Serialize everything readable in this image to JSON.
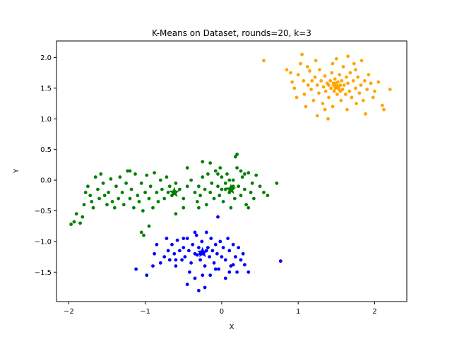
{
  "chart_data": {
    "type": "scatter",
    "title": "K-Means on Dataset, rounds=20, k=3",
    "xlabel": "X",
    "ylabel": "Y",
    "xlim": [
      -2.16,
      2.42
    ],
    "ylim": [
      -1.98,
      2.27
    ],
    "xticks": [
      -2,
      -1,
      0,
      1,
      2
    ],
    "yticks": [
      -1.5,
      -1.0,
      -0.5,
      0.0,
      0.5,
      1.0,
      1.5,
      2.0
    ],
    "xtick_labels": [
      "−2",
      "−1",
      "0",
      "1",
      "2"
    ],
    "ytick_labels": [
      "−1.5",
      "−1.0",
      "−0.5",
      "0.0",
      "0.5",
      "1.0",
      "1.5",
      "2.0"
    ],
    "grid": false,
    "legend": "none",
    "series": [
      {
        "color": "#ffa500",
        "centroid": [
          1.5,
          1.52
        ],
        "points": [
          [
            0.55,
            1.95
          ],
          [
            0.85,
            1.8
          ],
          [
            0.9,
            1.75
          ],
          [
            0.92,
            1.6
          ],
          [
            0.95,
            1.5
          ],
          [
            0.98,
            1.35
          ],
          [
            1.0,
            1.72
          ],
          [
            1.03,
            1.9
          ],
          [
            1.05,
            2.05
          ],
          [
            1.07,
            1.62
          ],
          [
            1.08,
            1.4
          ],
          [
            1.1,
            1.2
          ],
          [
            1.12,
            1.85
          ],
          [
            1.13,
            1.55
          ],
          [
            1.15,
            1.78
          ],
          [
            1.17,
            1.48
          ],
          [
            1.2,
            1.3
          ],
          [
            1.22,
            1.68
          ],
          [
            1.23,
            1.95
          ],
          [
            1.25,
            1.55
          ],
          [
            1.27,
            1.42
          ],
          [
            1.28,
            1.8
          ],
          [
            1.3,
            1.62
          ],
          [
            1.32,
            1.25
          ],
          [
            1.33,
            1.52
          ],
          [
            1.35,
            1.7
          ],
          [
            1.36,
            1.45
          ],
          [
            1.38,
            1.58
          ],
          [
            1.39,
            1.0
          ],
          [
            1.4,
            1.35
          ],
          [
            1.42,
            1.62
          ],
          [
            1.43,
            1.5
          ],
          [
            1.44,
            1.75
          ],
          [
            1.45,
            1.2
          ],
          [
            1.46,
            1.58
          ],
          [
            1.47,
            1.45
          ],
          [
            1.48,
            1.65
          ],
          [
            1.49,
            1.52
          ],
          [
            1.5,
            1.98
          ],
          [
            1.51,
            1.4
          ],
          [
            1.52,
            1.6
          ],
          [
            1.53,
            1.5
          ],
          [
            1.54,
            1.72
          ],
          [
            1.55,
            1.55
          ],
          [
            1.56,
            1.3
          ],
          [
            1.57,
            1.62
          ],
          [
            1.58,
            1.48
          ],
          [
            1.59,
            1.85
          ],
          [
            1.6,
            1.55
          ],
          [
            1.62,
            1.4
          ],
          [
            1.63,
            1.68
          ],
          [
            1.64,
            1.15
          ],
          [
            1.65,
            1.58
          ],
          [
            1.67,
            1.45
          ],
          [
            1.68,
            1.75
          ],
          [
            1.7,
            1.35
          ],
          [
            1.72,
            1.62
          ],
          [
            1.73,
            1.9
          ],
          [
            1.75,
            1.5
          ],
          [
            1.76,
            1.25
          ],
          [
            1.78,
            1.68
          ],
          [
            1.8,
            1.42
          ],
          [
            1.82,
            1.55
          ],
          [
            1.83,
            1.95
          ],
          [
            1.85,
            1.3
          ],
          [
            1.87,
            1.62
          ],
          [
            1.88,
            1.08
          ],
          [
            1.9,
            1.48
          ],
          [
            1.92,
            1.72
          ],
          [
            1.95,
            1.58
          ],
          [
            1.98,
            1.35
          ],
          [
            2.0,
            1.45
          ],
          [
            2.05,
            1.6
          ],
          [
            2.1,
            1.22
          ],
          [
            2.12,
            1.15
          ],
          [
            2.2,
            1.48
          ],
          [
            1.25,
            1.05
          ],
          [
            1.35,
            1.15
          ],
          [
            1.45,
            1.9
          ],
          [
            1.18,
            1.62
          ],
          [
            1.65,
            2.02
          ],
          [
            1.75,
            1.8
          ],
          [
            1.4,
            1.55
          ],
          [
            1.55,
            1.45
          ],
          [
            1.48,
            1.58
          ],
          [
            1.52,
            1.53
          ]
        ]
      },
      {
        "color": "#008000",
        "centroid": [
          -0.62,
          -0.2
        ],
        "centroid2": [
          0.12,
          -0.15
        ],
        "points": [
          [
            -1.97,
            -0.72
          ],
          [
            -1.93,
            -0.68
          ],
          [
            -1.9,
            -0.55
          ],
          [
            -1.85,
            -0.7
          ],
          [
            -1.82,
            -0.6
          ],
          [
            -1.8,
            -0.4
          ],
          [
            -1.78,
            -0.2
          ],
          [
            -1.75,
            -0.1
          ],
          [
            -1.72,
            -0.25
          ],
          [
            -1.7,
            -0.35
          ],
          [
            -1.68,
            -0.45
          ],
          [
            -1.65,
            0.05
          ],
          [
            -1.62,
            -0.15
          ],
          [
            -1.6,
            -0.3
          ],
          [
            -1.58,
            0.1
          ],
          [
            -1.55,
            -0.05
          ],
          [
            -1.53,
            -0.25
          ],
          [
            -1.5,
            -0.4
          ],
          [
            -1.48,
            -0.2
          ],
          [
            -1.45,
            0.02
          ],
          [
            -1.43,
            -0.35
          ],
          [
            -1.4,
            -0.45
          ],
          [
            -1.38,
            -0.1
          ],
          [
            -1.35,
            -0.3
          ],
          [
            -1.33,
            0.05
          ],
          [
            -1.3,
            -0.2
          ],
          [
            -1.28,
            -0.4
          ],
          [
            -1.25,
            -0.05
          ],
          [
            -1.23,
            0.15
          ],
          [
            -1.2,
            -0.3
          ],
          [
            -1.18,
            -0.15
          ],
          [
            -1.15,
            -0.45
          ],
          [
            -1.13,
            0.1
          ],
          [
            -1.1,
            -0.25
          ],
          [
            -1.08,
            -0.35
          ],
          [
            -1.05,
            -0.05
          ],
          [
            -1.03,
            -0.5
          ],
          [
            -1.0,
            -0.2
          ],
          [
            -0.98,
            0.08
          ],
          [
            -0.95,
            -0.3
          ],
          [
            -0.93,
            -0.1
          ],
          [
            -0.9,
            -0.45
          ],
          [
            -0.88,
            0.12
          ],
          [
            -0.85,
            -0.2
          ],
          [
            -0.83,
            -0.35
          ],
          [
            -0.8,
            0.0
          ],
          [
            -0.78,
            -0.15
          ],
          [
            -0.75,
            -0.3
          ],
          [
            -0.72,
            0.05
          ],
          [
            -0.7,
            -0.2
          ],
          [
            -0.68,
            -0.1
          ],
          [
            -0.65,
            -0.25
          ],
          [
            -0.6,
            -0.05
          ],
          [
            -0.55,
            -0.15
          ],
          [
            -0.5,
            -0.3
          ],
          [
            -0.45,
            -0.1
          ],
          [
            -0.4,
            0.0
          ],
          [
            -0.35,
            -0.2
          ],
          [
            -0.32,
            -0.35
          ],
          [
            -0.3,
            -0.1
          ],
          [
            -0.28,
            -0.25
          ],
          [
            -0.25,
            0.05
          ],
          [
            -0.22,
            -0.15
          ],
          [
            -0.2,
            -0.4
          ],
          [
            -0.18,
            0.1
          ],
          [
            -0.15,
            -0.2
          ],
          [
            -0.13,
            -0.05
          ],
          [
            -0.1,
            -0.3
          ],
          [
            -0.08,
            0.15
          ],
          [
            -0.05,
            -0.1
          ],
          [
            -0.03,
            -0.25
          ],
          [
            0.0,
            0.05
          ],
          [
            0.02,
            -0.35
          ],
          [
            0.05,
            -0.15
          ],
          [
            0.07,
            0.1
          ],
          [
            0.1,
            -0.2
          ],
          [
            0.12,
            -0.45
          ],
          [
            0.15,
            0.0
          ],
          [
            0.17,
            -0.3
          ],
          [
            0.2,
            0.2
          ],
          [
            0.22,
            -0.1
          ],
          [
            0.25,
            -0.25
          ],
          [
            0.27,
            0.05
          ],
          [
            0.3,
            -0.15
          ],
          [
            0.32,
            -0.4
          ],
          [
            0.35,
            0.12
          ],
          [
            0.38,
            -0.2
          ],
          [
            0.4,
            -0.05
          ],
          [
            0.42,
            -0.3
          ],
          [
            0.45,
            0.08
          ],
          [
            0.5,
            -0.1
          ],
          [
            0.55,
            -0.2
          ],
          [
            0.6,
            -0.25
          ],
          [
            0.72,
            -0.05
          ],
          [
            0.2,
            0.42
          ],
          [
            0.18,
            0.38
          ],
          [
            -0.25,
            0.3
          ],
          [
            -0.15,
            0.28
          ],
          [
            -0.45,
            0.2
          ],
          [
            -1.2,
            0.15
          ],
          [
            -1.05,
            -0.85
          ],
          [
            -1.02,
            -0.9
          ],
          [
            -0.95,
            -0.75
          ],
          [
            -0.5,
            -0.45
          ],
          [
            0.35,
            -0.45
          ],
          [
            -0.6,
            -0.55
          ],
          [
            -0.3,
            -0.45
          ],
          [
            0.0,
            -0.15
          ],
          [
            -0.05,
            0.1
          ],
          [
            0.1,
            0.0
          ],
          [
            0.15,
            -0.1
          ],
          [
            0.25,
            0.15
          ],
          [
            0.3,
            0.1
          ],
          [
            0.05,
            -0.05
          ],
          [
            -0.02,
            0.2
          ]
        ]
      },
      {
        "color": "#0000ff",
        "centroid": [
          -0.25,
          -1.18
        ],
        "points": [
          [
            -1.12,
            -1.45
          ],
          [
            -0.98,
            -1.55
          ],
          [
            -0.9,
            -1.4
          ],
          [
            -0.88,
            -1.2
          ],
          [
            -0.85,
            -1.05
          ],
          [
            -0.8,
            -1.35
          ],
          [
            -0.75,
            -1.25
          ],
          [
            -0.72,
            -0.95
          ],
          [
            -0.7,
            -1.15
          ],
          [
            -0.68,
            -1.3
          ],
          [
            -0.65,
            -1.05
          ],
          [
            -0.62,
            -1.2
          ],
          [
            -0.6,
            -1.4
          ],
          [
            -0.58,
            -0.98
          ],
          [
            -0.55,
            -1.15
          ],
          [
            -0.52,
            -1.3
          ],
          [
            -0.5,
            -1.1
          ],
          [
            -0.48,
            -1.25
          ],
          [
            -0.45,
            -0.95
          ],
          [
            -0.43,
            -1.15
          ],
          [
            -0.4,
            -1.35
          ],
          [
            -0.38,
            -1.05
          ],
          [
            -0.35,
            -1.2
          ],
          [
            -0.33,
            -0.9
          ],
          [
            -0.3,
            -1.1
          ],
          [
            -0.28,
            -1.3
          ],
          [
            -0.26,
            -1.0
          ],
          [
            -0.24,
            -1.2
          ],
          [
            -0.22,
            -1.4
          ],
          [
            -0.2,
            -0.85
          ],
          [
            -0.18,
            -1.1
          ],
          [
            -0.16,
            -1.25
          ],
          [
            -0.14,
            -0.95
          ],
          [
            -0.12,
            -1.15
          ],
          [
            -0.1,
            -1.35
          ],
          [
            -0.08,
            -1.05
          ],
          [
            -0.06,
            -1.2
          ],
          [
            -0.04,
            -1.45
          ],
          [
            -0.02,
            -1.0
          ],
          [
            0.0,
            -1.25
          ],
          [
            0.02,
            -1.1
          ],
          [
            0.05,
            -1.3
          ],
          [
            0.08,
            -0.95
          ],
          [
            0.1,
            -1.15
          ],
          [
            0.12,
            -1.4
          ],
          [
            0.15,
            -1.05
          ],
          [
            0.18,
            -1.25
          ],
          [
            0.2,
            -1.5
          ],
          [
            0.22,
            -1.1
          ],
          [
            0.25,
            -1.3
          ],
          [
            0.28,
            -1.2
          ],
          [
            0.3,
            -1.38
          ],
          [
            0.35,
            -1.5
          ],
          [
            -0.45,
            -1.7
          ],
          [
            -0.35,
            -1.6
          ],
          [
            -0.3,
            -1.8
          ],
          [
            -0.22,
            -1.75
          ],
          [
            -0.42,
            -1.5
          ],
          [
            -0.25,
            -1.55
          ],
          [
            0.05,
            -1.6
          ],
          [
            -0.05,
            -0.6
          ],
          [
            -0.35,
            -0.85
          ],
          [
            -0.5,
            -0.95
          ],
          [
            -0.6,
            -1.3
          ],
          [
            0.77,
            -1.32
          ],
          [
            -0.15,
            -1.55
          ],
          [
            -0.08,
            -1.45
          ],
          [
            0.1,
            -1.5
          ],
          [
            0.15,
            -1.38
          ],
          [
            -0.28,
            -1.2
          ],
          [
            -0.2,
            -1.15
          ],
          [
            -0.32,
            -1.22
          ]
        ]
      }
    ]
  }
}
